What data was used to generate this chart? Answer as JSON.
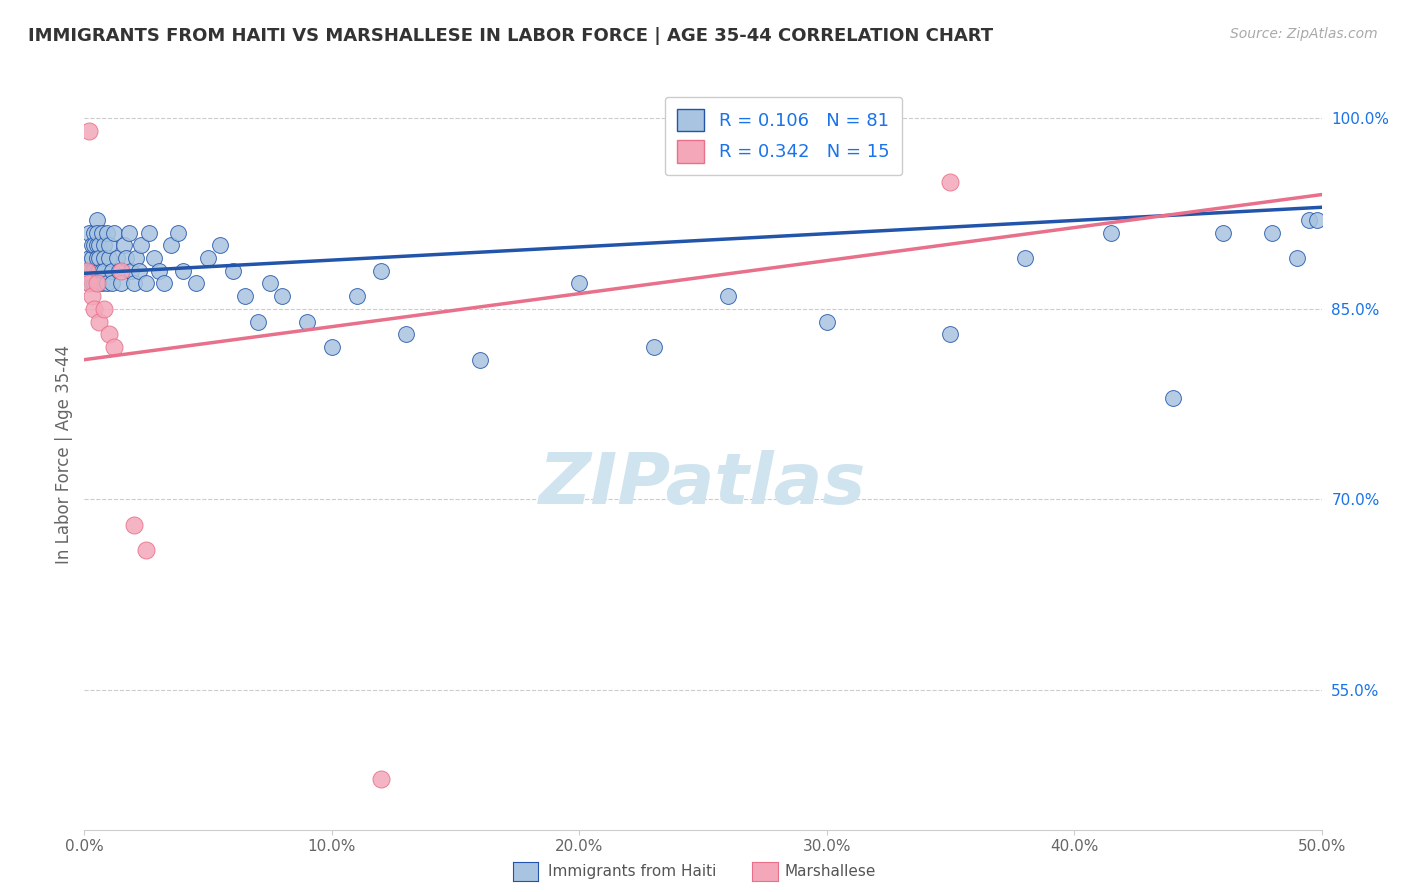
{
  "title": "IMMIGRANTS FROM HAITI VS MARSHALLESE IN LABOR FORCE | AGE 35-44 CORRELATION CHART",
  "source": "Source: ZipAtlas.com",
  "xlabel_haiti": "Immigrants from Haiti",
  "xlabel_marsh": "Marshallese",
  "ylabel": "In Labor Force | Age 35-44",
  "xlim": [
    0.0,
    0.5
  ],
  "ylim": [
    0.44,
    1.03
  ],
  "xtick_vals": [
    0.0,
    0.1,
    0.2,
    0.3,
    0.4,
    0.5
  ],
  "xtick_labels": [
    "0.0%",
    "10.0%",
    "20.0%",
    "30.0%",
    "40.0%",
    "50.0%"
  ],
  "ytick_right": [
    0.55,
    0.7,
    0.85,
    1.0
  ],
  "ytick_right_labels": [
    "55.0%",
    "70.0%",
    "85.0%",
    "100.0%"
  ],
  "haiti_R": 0.106,
  "haiti_N": 81,
  "marsh_R": 0.342,
  "marsh_N": 15,
  "haiti_color": "#a8c4e0",
  "marsh_color": "#f4a7b9",
  "haiti_line_color": "#2255aa",
  "marsh_line_color": "#e8708a",
  "legend_r_color": "#1a73e8",
  "title_color": "#333333",
  "haiti_x": [
    0.001,
    0.002,
    0.002,
    0.002,
    0.003,
    0.003,
    0.003,
    0.003,
    0.004,
    0.004,
    0.004,
    0.004,
    0.005,
    0.005,
    0.005,
    0.005,
    0.005,
    0.005,
    0.006,
    0.006,
    0.006,
    0.006,
    0.007,
    0.007,
    0.007,
    0.008,
    0.008,
    0.008,
    0.009,
    0.009,
    0.01,
    0.01,
    0.011,
    0.011,
    0.012,
    0.013,
    0.014,
    0.015,
    0.016,
    0.017,
    0.018,
    0.019,
    0.02,
    0.021,
    0.022,
    0.023,
    0.025,
    0.026,
    0.028,
    0.03,
    0.032,
    0.035,
    0.038,
    0.04,
    0.045,
    0.05,
    0.055,
    0.06,
    0.065,
    0.07,
    0.075,
    0.08,
    0.09,
    0.1,
    0.11,
    0.12,
    0.13,
    0.16,
    0.2,
    0.23,
    0.26,
    0.3,
    0.35,
    0.38,
    0.415,
    0.44,
    0.46,
    0.48,
    0.49,
    0.495,
    0.498
  ],
  "haiti_y": [
    0.88,
    0.91,
    0.87,
    0.89,
    0.89,
    0.88,
    0.9,
    0.87,
    0.91,
    0.88,
    0.87,
    0.9,
    0.92,
    0.9,
    0.88,
    0.89,
    0.87,
    0.91,
    0.9,
    0.88,
    0.87,
    0.89,
    0.91,
    0.88,
    0.87,
    0.9,
    0.89,
    0.88,
    0.91,
    0.87,
    0.89,
    0.9,
    0.88,
    0.87,
    0.91,
    0.89,
    0.88,
    0.87,
    0.9,
    0.89,
    0.91,
    0.88,
    0.87,
    0.89,
    0.88,
    0.9,
    0.87,
    0.91,
    0.89,
    0.88,
    0.87,
    0.9,
    0.91,
    0.88,
    0.87,
    0.89,
    0.9,
    0.88,
    0.86,
    0.84,
    0.87,
    0.86,
    0.84,
    0.82,
    0.86,
    0.88,
    0.83,
    0.81,
    0.87,
    0.82,
    0.86,
    0.84,
    0.83,
    0.89,
    0.91,
    0.78,
    0.91,
    0.91,
    0.89,
    0.92,
    0.92
  ],
  "marsh_x": [
    0.001,
    0.002,
    0.002,
    0.003,
    0.004,
    0.005,
    0.006,
    0.008,
    0.01,
    0.012,
    0.015,
    0.02,
    0.025,
    0.35,
    0.12
  ],
  "marsh_y": [
    0.88,
    0.87,
    0.99,
    0.86,
    0.85,
    0.87,
    0.84,
    0.85,
    0.83,
    0.82,
    0.88,
    0.68,
    0.66,
    0.95,
    0.48
  ],
  "haiti_trend_x": [
    0.0,
    0.5
  ],
  "haiti_trend_y": [
    0.878,
    0.93
  ],
  "marsh_trend_x": [
    0.0,
    0.5
  ],
  "marsh_trend_y": [
    0.81,
    0.94
  ],
  "watermark": "ZIPatlas",
  "watermark_color": "#d0e4f0"
}
